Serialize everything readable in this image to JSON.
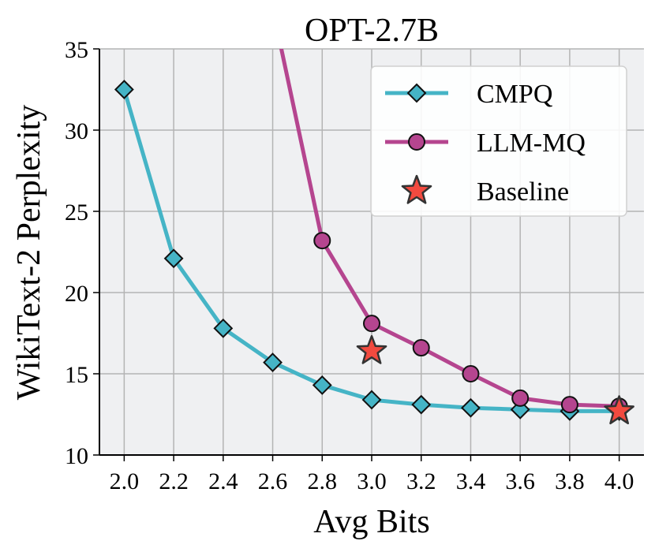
{
  "chart_data": {
    "type": "line",
    "title": "OPT-2.7B",
    "xlabel": "Avg Bits",
    "ylabel": "WikiText-2 Perplexity",
    "x": [
      2.0,
      2.2,
      2.4,
      2.6,
      2.8,
      3.0,
      3.2,
      3.4,
      3.6,
      3.8,
      4.0
    ],
    "x_ticks": [
      "2.0",
      "2.2",
      "2.4",
      "2.6",
      "2.8",
      "3.0",
      "3.2",
      "3.4",
      "3.6",
      "3.8",
      "4.0"
    ],
    "y_ticks": [
      "10",
      "15",
      "20",
      "25",
      "30",
      "35"
    ],
    "xlim": [
      1.9,
      4.1
    ],
    "ylim": [
      10,
      35
    ],
    "grid": true,
    "legend_position": "top-right",
    "series": [
      {
        "name": "CMPQ",
        "color": "#45b4c6",
        "marker": "diamond",
        "x": [
          2.0,
          2.2,
          2.4,
          2.6,
          2.8,
          3.0,
          3.2,
          3.4,
          3.6,
          3.8,
          4.0
        ],
        "values": [
          32.5,
          22.1,
          17.8,
          15.7,
          14.3,
          13.4,
          13.1,
          12.9,
          12.8,
          12.7,
          12.7
        ]
      },
      {
        "name": "LLM-MQ",
        "color": "#b5458f",
        "marker": "circle",
        "x": [
          2.6,
          2.8,
          3.0,
          3.2,
          3.4,
          3.6,
          3.8,
          4.0
        ],
        "values": [
          37.5,
          23.2,
          18.1,
          16.6,
          15.0,
          13.5,
          13.1,
          13.0
        ]
      },
      {
        "name": "Baseline",
        "color": "#f24a3f",
        "marker": "star",
        "x": [
          3.0,
          4.0
        ],
        "values": [
          16.4,
          12.7
        ]
      }
    ]
  }
}
